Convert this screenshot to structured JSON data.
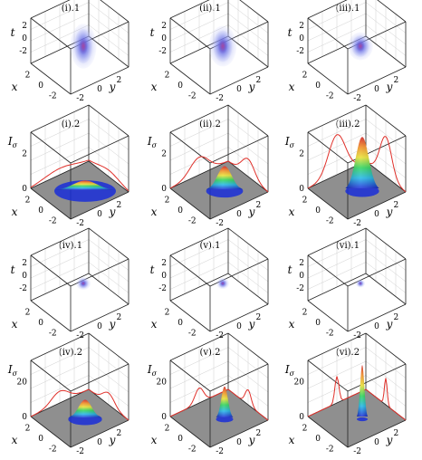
{
  "figure": {
    "panels": [
      {
        "id": "i-1",
        "label": "(i).1",
        "kind": "density",
        "col": 0,
        "row": 0,
        "size": 1.0,
        "elong": 1.9
      },
      {
        "id": "ii-1",
        "label": "(ii).1",
        "kind": "density",
        "col": 1,
        "row": 0,
        "size": 1.05,
        "elong": 1.65
      },
      {
        "id": "iii-1",
        "label": "(iii).1",
        "kind": "density",
        "col": 2,
        "row": 0,
        "size": 0.95,
        "elong": 1.25
      },
      {
        "id": "i-2",
        "label": "(i).2",
        "kind": "intensity",
        "col": 0,
        "row": 1,
        "peak": 0.18,
        "width": 1.0,
        "side": 0.12,
        "zmax": 3
      },
      {
        "id": "ii-2",
        "label": "(ii).2",
        "kind": "intensity",
        "col": 1,
        "row": 1,
        "peak": 0.45,
        "width": 0.6,
        "side": 0.33,
        "zmax": 3
      },
      {
        "id": "iii-2",
        "label": "(iii).2",
        "kind": "intensity",
        "col": 2,
        "row": 1,
        "peak": 1.0,
        "width": 0.55,
        "side": 0.75,
        "zmax": 3
      },
      {
        "id": "iv-1",
        "label": "(iv).1",
        "kind": "density",
        "col": 0,
        "row": 2,
        "size": 0.55,
        "elong": 1.0
      },
      {
        "id": "v-1",
        "label": "(v).1",
        "kind": "density",
        "col": 1,
        "row": 2,
        "size": 0.48,
        "elong": 1.0
      },
      {
        "id": "vi-1",
        "label": "(vi).1",
        "kind": "density",
        "col": 2,
        "row": 2,
        "size": 0.35,
        "elong": 1.0
      },
      {
        "id": "iv-2",
        "label": "(iv).2",
        "kind": "intensity",
        "col": 0,
        "row": 3,
        "peak": 0.35,
        "width": 0.55,
        "side": 0.22,
        "zmax": 20
      },
      {
        "id": "v-2",
        "label": "(v).2",
        "kind": "intensity",
        "col": 1,
        "row": 3,
        "peak": 0.6,
        "width": 0.28,
        "side": 0.28,
        "zmax": 20
      },
      {
        "id": "vi-2",
        "label": "(vi).2",
        "kind": "intensity",
        "col": 2,
        "row": 3,
        "peak": 1.0,
        "width": 0.13,
        "side": 0.5,
        "zmax": 20
      }
    ],
    "ticks": {
      "t": [
        "2",
        "0",
        "-2"
      ],
      "x": [
        "2",
        "0",
        "-2"
      ],
      "y": [
        "-2",
        "0",
        "2"
      ],
      "I_low": [
        "0",
        "2"
      ],
      "I_high": [
        "0",
        "20"
      ]
    },
    "axis_labels": {
      "t": "t",
      "x": "x",
      "y": "y",
      "I": "I",
      "I_sub": "σ"
    }
  }
}
